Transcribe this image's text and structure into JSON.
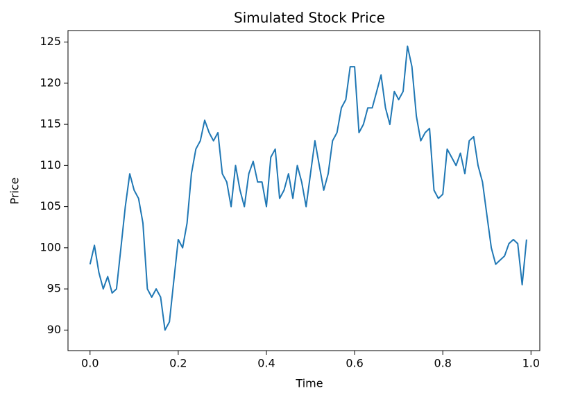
{
  "chart_data": {
    "type": "line",
    "title": "Simulated Stock Price",
    "xlabel": "Time",
    "ylabel": "Price",
    "x": [
      0.0,
      0.01,
      0.02,
      0.03,
      0.04,
      0.05,
      0.06,
      0.07,
      0.08,
      0.09,
      0.1,
      0.11,
      0.12,
      0.13,
      0.14,
      0.15,
      0.16,
      0.17,
      0.18,
      0.19,
      0.2,
      0.21,
      0.22,
      0.23,
      0.24,
      0.25,
      0.26,
      0.27,
      0.28,
      0.29,
      0.3,
      0.31,
      0.32,
      0.33,
      0.34,
      0.35,
      0.36,
      0.37,
      0.38,
      0.39,
      0.4,
      0.41,
      0.42,
      0.43,
      0.44,
      0.45,
      0.46,
      0.47,
      0.48,
      0.49,
      0.5,
      0.51,
      0.52,
      0.53,
      0.54,
      0.55,
      0.56,
      0.57,
      0.58,
      0.59,
      0.6,
      0.61,
      0.62,
      0.63,
      0.64,
      0.65,
      0.66,
      0.67,
      0.68,
      0.69,
      0.7,
      0.71,
      0.72,
      0.73,
      0.74,
      0.75,
      0.76,
      0.77,
      0.78,
      0.79,
      0.8,
      0.81,
      0.82,
      0.83,
      0.84,
      0.85,
      0.86,
      0.87,
      0.88,
      0.89,
      0.9,
      0.91,
      0.92,
      0.93,
      0.94,
      0.95,
      0.96,
      0.97,
      0.98,
      0.99
    ],
    "series": [
      {
        "name": "Price",
        "color": "#1f77b4",
        "values": [
          98,
          100.3,
          97,
          95,
          96.5,
          94.5,
          95,
          100,
          105,
          109,
          107,
          106,
          103,
          95,
          94,
          95,
          94,
          90,
          91,
          96,
          101,
          100,
          103,
          109,
          112,
          113,
          115.5,
          114,
          113,
          114,
          109,
          108,
          105,
          110,
          107,
          105,
          109,
          110.5,
          108,
          108,
          105,
          111,
          112,
          106,
          107,
          109,
          106,
          110,
          108,
          105,
          109,
          113,
          110,
          107,
          109,
          113,
          114,
          117,
          118,
          122,
          122,
          114,
          115,
          117,
          117,
          119,
          121,
          117,
          115,
          119,
          118,
          119,
          124.5,
          122,
          116,
          113,
          114,
          114.5,
          107,
          106,
          106.5,
          112,
          111,
          110,
          111.5,
          109,
          113,
          113.5,
          110,
          108,
          104,
          100,
          98,
          98.5,
          99,
          100.5,
          101,
          100.5,
          95.5,
          101
        ]
      }
    ],
    "xlim": [
      -0.05,
      1.02
    ],
    "ylim": [
      87.5,
      126.4
    ],
    "xticks": [
      {
        "value": 0,
        "label": "0.0"
      },
      0.2,
      0.4,
      0.6,
      0.8,
      {
        "value": 1,
        "label": "1.0"
      }
    ],
    "yticks": [
      90,
      95,
      100,
      105,
      110,
      115,
      120,
      125
    ]
  }
}
